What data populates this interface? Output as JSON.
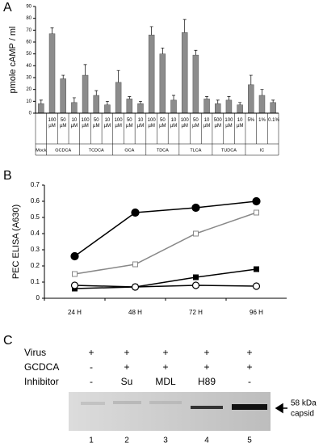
{
  "panel_labels": [
    "A",
    "B",
    "C"
  ],
  "chart_data": [
    {
      "type": "bar",
      "y_label": "pmole cAMP / ml",
      "groups": [
        "Mock",
        "GCDCA",
        "TCDCA",
        "GCA",
        "TDCA",
        "TLCA",
        "TUDCA",
        "IC"
      ],
      "categories": [
        null,
        "100 µM",
        "50 µM",
        "10 µM",
        "100 µM",
        "50 µM",
        "10 µM",
        "100 µM",
        "50 µM",
        "10 µM",
        "100 µM",
        "50 µM",
        "10 µM",
        "100 µM",
        "50 µM",
        "10 µM",
        "500 µM",
        "100 µM",
        "10 µM",
        "5%",
        "1%",
        "0.1%"
      ],
      "values": [
        8,
        67,
        29,
        9,
        32,
        15,
        7,
        26,
        12,
        8,
        66,
        50,
        11,
        68,
        49,
        12,
        8,
        11,
        7,
        24,
        15,
        9
      ],
      "errors": [
        3,
        5,
        3,
        4,
        9,
        4,
        3,
        10,
        2,
        2,
        7,
        5,
        4,
        11,
        4,
        2,
        3,
        3,
        2,
        8,
        5,
        2
      ],
      "color": "#8c8c8c",
      "ylim": [
        0,
        90
      ],
      "yticks": [
        0,
        10,
        20,
        30,
        40,
        50,
        60,
        70,
        80,
        90
      ]
    },
    {
      "type": "line",
      "y_label": "PEC ELISA (A630)",
      "categories": [
        "24 H",
        "48 H",
        "72 H",
        "96 H"
      ],
      "series": [
        {
          "color": "#000000",
          "marker": "filled-circle",
          "values": [
            0.26,
            0.53,
            0.56,
            0.6
          ]
        },
        {
          "color": "#888888",
          "marker": "open-square",
          "values": [
            0.15,
            0.21,
            0.4,
            0.53
          ]
        },
        {
          "color": "#000000",
          "marker": "filled-square",
          "values": [
            0.06,
            0.07,
            0.13,
            0.18
          ]
        },
        {
          "color": "#000000",
          "marker": "open-circle",
          "values": [
            0.08,
            0.07,
            0.08,
            0.075
          ]
        }
      ],
      "ylim": [
        0,
        0.7
      ],
      "yticks": [
        0,
        0.1,
        0.2,
        0.3,
        0.4,
        0.5,
        0.6,
        0.7
      ]
    }
  ],
  "gel": {
    "rows": [
      {
        "label": "Virus",
        "lanes": [
          "+",
          "+",
          "+",
          "+",
          "+"
        ]
      },
      {
        "label": "GCDCA",
        "lanes": [
          "-",
          "+",
          "+",
          "+",
          "+"
        ]
      },
      {
        "label": "Inhibitor",
        "lanes": [
          "-",
          "Su",
          "MDL",
          "H89",
          "-"
        ]
      }
    ],
    "lane_numbers": [
      "1",
      "2",
      "3",
      "4",
      "5"
    ],
    "band_label": [
      "58 kDa",
      "capsid"
    ]
  }
}
